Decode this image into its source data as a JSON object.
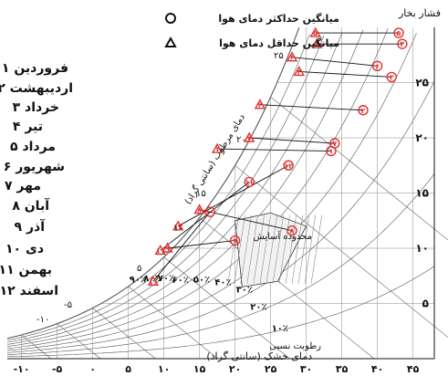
{
  "chart_data": {
    "type": "scatter",
    "title": "",
    "xlabel": "دمای خشک (سانتی گراد)",
    "ylabel_right": "فشار بخار",
    "wet_bulb_label": "دمای مرطوب (سانتی گراد)",
    "rh_label": "رطوبت نسبی",
    "comfort_label": "محدوده آسایش",
    "x_ticks": [
      "-۱۰",
      "-۵",
      "۰",
      "۵",
      "۱۰",
      "۱۵",
      "۲۰",
      "۲۵",
      "۳۰",
      "۳۵",
      "۴۰",
      "۴۵"
    ],
    "y_ticks": [
      "۵",
      "۱۰",
      "۱۵",
      "۲۰",
      "۲۵"
    ],
    "rh_ticks": [
      "۱۰٪",
      "۲۰٪",
      "۳۰٪",
      "۴۰٪",
      "۵۰٪",
      "۶۰٪",
      "۷۰٪",
      "۸۰٪",
      "۹۰٪",
      "۱۰۰٪"
    ],
    "wet_bulb_ticks": [
      "-۱۰",
      "-۵",
      "۵",
      "۱۰",
      "۱۵",
      "۲۰",
      "۲۵"
    ],
    "xlim": [
      -12,
      48
    ],
    "ylim": [
      0,
      30
    ],
    "legend": [
      {
        "marker": "circle",
        "label": "میانگین حداکثر دمای هوا"
      },
      {
        "marker": "triangle",
        "label": "میانگین حداقل دمای هوا"
      }
    ],
    "months": [
      "۱ فروردین",
      "۲ اردیبهشت",
      "۳ خرداد",
      "۴ تیر",
      "۵ مرداد",
      "۶ شهریور",
      "۷ مهر",
      "۸ آبان",
      "۹ آذر",
      "۱۰ دی",
      "۱۱ بهمن",
      "۱۲ اسفند"
    ],
    "series": [
      {
        "name": "میانگین حداکثر دمای هوا",
        "marker": "circle",
        "labels": [
          "۱",
          "۲",
          "۳",
          "۴",
          "۵",
          "۶",
          "۷",
          "۸",
          "۹",
          "۱۰",
          "۱۱",
          "۱۲"
        ],
        "x": [
          33.5,
          38,
          42,
          43.5,
          43,
          40,
          34,
          28,
          20,
          16.5,
          22,
          27.5
        ],
        "y": [
          18.8,
          22.5,
          25.5,
          28.5,
          29.5,
          26.5,
          19.5,
          11.6,
          10.7,
          13.3,
          16.0,
          17.5
        ]
      },
      {
        "name": "میانگین حداقل دمای هوا",
        "marker": "triangle",
        "labels": [
          "۱",
          "۲",
          "۳",
          "۴",
          "۵",
          "۶",
          "۷",
          "۸",
          "۹",
          "۱۰",
          "۱۱",
          "۱۲"
        ],
        "x": [
          17.5,
          23.5,
          29,
          31.5,
          31.3,
          28,
          22,
          15,
          10.5,
          8.5,
          9.5,
          12
        ],
        "y": [
          19.0,
          23.0,
          26.0,
          28.5,
          29.5,
          27.3,
          20.0,
          13.5,
          10.0,
          7.0,
          9.8,
          12.0
        ]
      }
    ]
  }
}
